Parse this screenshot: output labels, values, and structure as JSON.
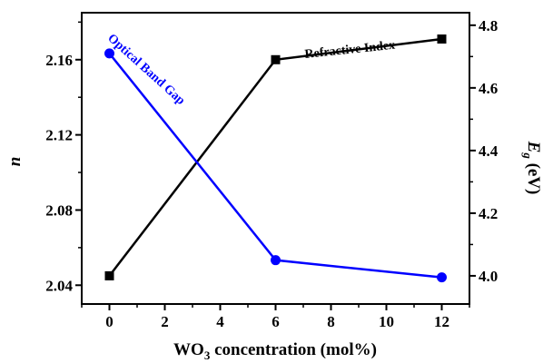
{
  "chart_data": {
    "type": "line",
    "x": [
      0,
      6,
      12
    ],
    "xlim": [
      -1,
      13
    ],
    "x_ticks": [
      0,
      2,
      4,
      6,
      8,
      10,
      12
    ],
    "x_tick_labels": [
      "0",
      "2",
      "4",
      "6",
      "8",
      "10",
      "12"
    ],
    "xlabel": {
      "main": "WO",
      "sub": "3",
      "rest": " concentration (mol%)"
    },
    "ylabel_left": "n",
    "ylim_left": [
      2.03,
      2.185
    ],
    "y_ticks_left": [
      2.04,
      2.08,
      2.12,
      2.16
    ],
    "y_tick_labels_left": [
      "2.04",
      "2.08",
      "2.12",
      "2.16"
    ],
    "ylabel_right": {
      "main": "E",
      "sub": "g",
      "rest": " (eV)"
    },
    "ylim_right": [
      3.91,
      4.84
    ],
    "y_ticks_right": [
      4.0,
      4.2,
      4.4,
      4.6,
      4.8
    ],
    "y_tick_labels_right": [
      "4.0",
      "4.2",
      "4.4",
      "4.6",
      "4.8"
    ],
    "grid": false,
    "series": [
      {
        "name": "Refractive Index",
        "axis": "left",
        "marker": "square",
        "color": "#000000",
        "values": [
          2.045,
          2.16,
          2.171
        ]
      },
      {
        "name": "Optical Band Gap",
        "axis": "right",
        "marker": "circle",
        "color": "#0000ff",
        "values": [
          4.71,
          4.05,
          3.995
        ]
      }
    ]
  }
}
